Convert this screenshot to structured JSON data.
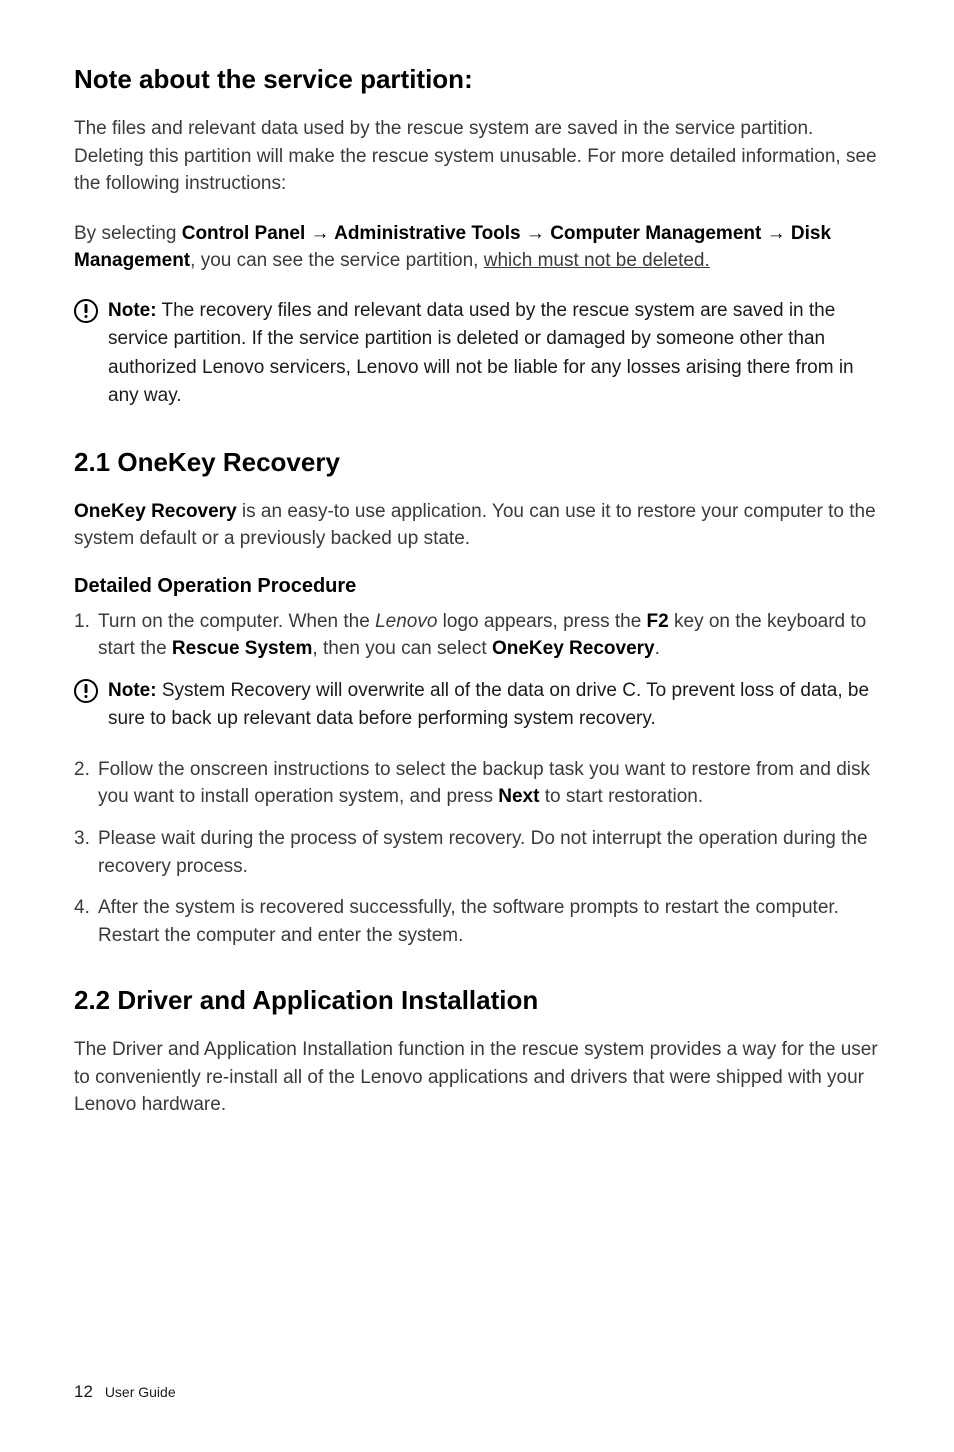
{
  "sections": {
    "servicePartition": {
      "title": "Note about the service partition:",
      "intro": "The files and relevant data used by the rescue system are saved in the service partition. Deleting this partition will make the rescue system unusable. For more detailed information, see the following instructions:",
      "path_prefix": "By selecting ",
      "path_cp": "Control Panel",
      "arrow": " → ",
      "path_at": "Administrative Tools",
      "path_cm": "Computer Management",
      "path_dm": "Disk Management",
      "path_mid": ", you can see the service partition, ",
      "path_underlined": "which must not be deleted.",
      "noteLabel": "Note:",
      "note": " The recovery files and relevant data used by the rescue system are saved in the service partition. If the service partition is deleted or damaged by someone other than authorized Lenovo servicers, Lenovo will not be liable for any losses arising there from in any way."
    },
    "onekey": {
      "title": "2.1 OneKey Recovery",
      "introBold": "OneKey Recovery",
      "introRest": " is an easy-to use application. You can use it to restore your computer to the system default or a previously backed up state.",
      "subheading": "Detailed Operation Procedure",
      "step1_a": "Turn on the computer. When the ",
      "step1_lenovo": "Lenovo",
      "step1_b": " logo appears, press the ",
      "step1_f2": "F2",
      "step1_c": " key on the keyboard to start the ",
      "step1_rs": "Rescue System",
      "step1_d": ", then you can select ",
      "step1_ok": "OneKey Recovery",
      "step1_e": ".",
      "noteLabel": "Note:",
      "note": " System Recovery will overwrite all of the data on drive C. To prevent loss of data, be sure to back up relevant data before performing system recovery.",
      "step2_a": "Follow the onscreen instructions to select the backup task you want to restore from and disk you want to install operation system, and press ",
      "step2_next": "Next",
      "step2_b": " to start restoration.",
      "step3": "Please wait during the process of system recovery. Do not interrupt the operation during the recovery process.",
      "step4": "After the system is recovered successfully, the software prompts to restart the computer. Restart the computer and enter the system."
    },
    "driver": {
      "title": "2.2 Driver and Application Installation",
      "body": "The Driver and Application Installation function in the rescue system provides a way for the user to conveniently re-install all of the Lenovo applications and drivers that were shipped with your Lenovo hardware."
    }
  },
  "footer": {
    "page": "12",
    "label": "User Guide"
  }
}
